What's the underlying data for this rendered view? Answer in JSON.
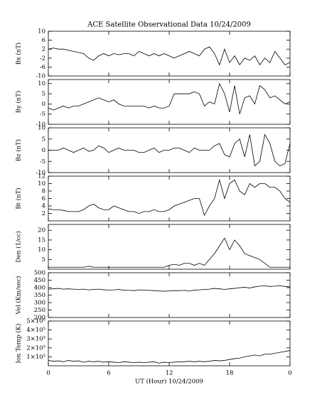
{
  "chart_data": [
    {
      "type": "line",
      "title": "ACE Satellite Observational Data   10/24/2009",
      "ylabel": "Bx (nT)",
      "color": "#000000",
      "x": [
        0,
        0.5,
        1,
        1.5,
        2,
        2.5,
        3,
        3.5,
        4,
        4.5,
        5,
        5.5,
        6,
        6.5,
        7,
        7.5,
        8,
        8.5,
        9,
        9.5,
        10,
        10.5,
        11,
        11.5,
        12,
        12.5,
        13,
        13.5,
        14,
        14.5,
        15,
        15.5,
        16,
        16.5,
        17,
        17.5,
        18,
        18.5,
        19,
        19.5,
        20,
        20.5,
        21,
        21.5,
        22,
        22.5,
        23,
        23.5,
        24
      ],
      "values": [
        2,
        2.5,
        2,
        2,
        1.5,
        1,
        0.5,
        0,
        -2,
        -3,
        -1,
        0,
        -1,
        0,
        -0.5,
        0,
        0,
        -1,
        1,
        0,
        -1,
        0,
        -1,
        0,
        -1,
        -2,
        -1,
        0,
        1,
        0,
        -1,
        2,
        3,
        0,
        -5,
        2,
        -4,
        -1,
        -5,
        -2,
        -3,
        -1,
        -5,
        -2,
        -4,
        1,
        -2,
        -5,
        -4
      ],
      "xlim": [
        0,
        24
      ],
      "ylim": [
        -10,
        10
      ],
      "yticks": [
        -10,
        -6,
        -2,
        2,
        6,
        10
      ]
    },
    {
      "type": "line",
      "ylabel": "By (nT)",
      "color": "#000000",
      "x": [
        0,
        0.5,
        1,
        1.5,
        2,
        2.5,
        3,
        3.5,
        4,
        4.5,
        5,
        5.5,
        6,
        6.5,
        7,
        7.5,
        8,
        8.5,
        9,
        9.5,
        10,
        10.5,
        11,
        11.5,
        12,
        12.5,
        13,
        13.5,
        14,
        14.5,
        15,
        15.5,
        16,
        16.5,
        17,
        17.5,
        18,
        18.5,
        19,
        19.5,
        20,
        20.5,
        21,
        21.5,
        22,
        22.5,
        23,
        23.5,
        24
      ],
      "values": [
        -2,
        -3,
        -2,
        -1,
        -2,
        -1,
        -1,
        0,
        1,
        2,
        3,
        2,
        1,
        2,
        0,
        -1,
        -1,
        -1,
        -1,
        -1,
        -2,
        -1,
        -2,
        -2,
        -1,
        5,
        5,
        5,
        5,
        6,
        5,
        -1,
        1,
        0,
        10,
        5,
        -4,
        9,
        -5,
        3,
        4,
        0,
        9,
        7,
        3,
        4,
        2,
        0,
        1
      ],
      "xlim": [
        0,
        24
      ],
      "ylim": [
        -10,
        12
      ],
      "yticks": [
        -10,
        -5,
        0,
        5,
        10
      ]
    },
    {
      "type": "line",
      "ylabel": "Bz (nT)",
      "color": "#000000",
      "x": [
        0,
        0.5,
        1,
        1.5,
        2,
        2.5,
        3,
        3.5,
        4,
        4.5,
        5,
        5.5,
        6,
        6.5,
        7,
        7.5,
        8,
        8.5,
        9,
        9.5,
        10,
        10.5,
        11,
        11.5,
        12,
        12.5,
        13,
        13.5,
        14,
        14.5,
        15,
        15.5,
        16,
        16.5,
        17,
        17.5,
        18,
        18.5,
        19,
        19.5,
        20,
        20.5,
        21,
        21.5,
        22,
        22.5,
        23,
        23.5,
        24
      ],
      "values": [
        0,
        0,
        0,
        1,
        0,
        -1,
        0,
        1,
        -0.5,
        0,
        2,
        1,
        -1,
        0,
        1,
        0,
        0,
        0,
        -1,
        -1,
        0,
        1,
        -1,
        0,
        0,
        1,
        1,
        0,
        -1,
        1,
        0,
        0,
        0,
        2,
        3,
        -2,
        -3,
        3,
        5,
        -3,
        7,
        -7,
        -5,
        7,
        3,
        -5,
        -7,
        -6,
        3
      ],
      "xlim": [
        0,
        24
      ],
      "ylim": [
        -10,
        10
      ],
      "yticks": [
        -10,
        -5,
        0,
        5,
        10
      ]
    },
    {
      "type": "line",
      "ylabel": "Bt (nT)",
      "color": "#000000",
      "x": [
        0,
        0.5,
        1,
        1.5,
        2,
        2.5,
        3,
        3.5,
        4,
        4.5,
        5,
        5.5,
        6,
        6.5,
        7,
        7.5,
        8,
        8.5,
        9,
        9.5,
        10,
        10.5,
        11,
        11.5,
        12,
        12.5,
        13,
        13.5,
        14,
        14.5,
        15,
        15.5,
        16,
        16.5,
        17,
        17.5,
        18,
        18.5,
        19,
        19.5,
        20,
        20.5,
        21,
        21.5,
        22,
        22.5,
        23,
        23.5,
        24
      ],
      "values": [
        3.2,
        3,
        3,
        2.8,
        2.5,
        2.5,
        2.5,
        3,
        4,
        4.5,
        3.5,
        3,
        3,
        4,
        3.5,
        3,
        2.5,
        2.5,
        2,
        2.5,
        2.5,
        3,
        2.5,
        2.5,
        3,
        4,
        4.5,
        5,
        5.5,
        6,
        6,
        1.5,
        4,
        6,
        11,
        6,
        10,
        11,
        8,
        7,
        10,
        9,
        10,
        10,
        9,
        9,
        8,
        6,
        5
      ],
      "xlim": [
        0,
        24
      ],
      "ylim": [
        0,
        12
      ],
      "yticks": [
        2,
        4,
        6,
        8,
        10,
        12
      ]
    },
    {
      "type": "line",
      "ylabel": "Den (1/cc)",
      "color": "#000000",
      "x": [
        0,
        0.5,
        1,
        1.5,
        2,
        2.5,
        3,
        3.5,
        4,
        4.5,
        5,
        5.5,
        6,
        6.5,
        7,
        7.5,
        8,
        8.5,
        9,
        9.5,
        10,
        10.5,
        11,
        11.5,
        12,
        12.5,
        13,
        13.5,
        14,
        14.5,
        15,
        15.5,
        16,
        16.5,
        17,
        17.5,
        18,
        18.5,
        19,
        19.5,
        20,
        20.5,
        21,
        21.5,
        22,
        22.5,
        23,
        23.5,
        24
      ],
      "values": [
        1,
        1,
        1,
        1,
        1,
        1,
        1,
        1,
        1.5,
        1,
        1,
        1,
        1,
        1,
        1,
        1,
        1,
        1,
        1,
        1,
        1,
        1,
        1,
        1,
        2,
        2.5,
        2,
        3,
        3,
        2,
        3,
        2,
        5,
        8,
        12,
        16,
        10,
        15,
        12,
        8,
        7,
        6,
        5,
        3,
        1,
        1,
        1,
        1,
        1
      ],
      "xlim": [
        0,
        24
      ],
      "ylim": [
        0,
        23
      ],
      "yticks": [
        5,
        10,
        15,
        20
      ]
    },
    {
      "type": "line",
      "ylabel": "Vel (Km/sec)",
      "color": "#000000",
      "x": [
        0,
        0.5,
        1,
        1.5,
        2,
        2.5,
        3,
        3.5,
        4,
        4.5,
        5,
        5.5,
        6,
        6.5,
        7,
        7.5,
        8,
        8.5,
        9,
        9.5,
        10,
        10.5,
        11,
        11.5,
        12,
        12.5,
        13,
        13.5,
        14,
        14.5,
        15,
        15.5,
        16,
        16.5,
        17,
        17.5,
        18,
        18.5,
        19,
        19.5,
        20,
        20.5,
        21,
        21.5,
        22,
        22.5,
        23,
        23.5,
        24
      ],
      "values": [
        390,
        392,
        395,
        390,
        392,
        390,
        388,
        390,
        385,
        388,
        390,
        386,
        384,
        385,
        388,
        383,
        382,
        380,
        385,
        384,
        382,
        380,
        378,
        376,
        378,
        380,
        380,
        382,
        378,
        383,
        385,
        388,
        390,
        395,
        392,
        388,
        392,
        395,
        400,
        402,
        398,
        405,
        410,
        412,
        408,
        410,
        412,
        408,
        405
      ],
      "xlim": [
        0,
        24
      ],
      "ylim": [
        200,
        500
      ],
      "yticks": [
        200,
        250,
        300,
        350,
        400,
        450,
        500
      ]
    },
    {
      "type": "line",
      "ylabel": "Ion Temp (K)",
      "xlabel": "UT (Hour)  10/24/2009",
      "color": "#000000",
      "x": [
        0,
        0.5,
        1,
        1.5,
        2,
        2.5,
        3,
        3.5,
        4,
        4.5,
        5,
        5.5,
        6,
        6.5,
        7,
        7.5,
        8,
        8.5,
        9,
        9.5,
        10,
        10.5,
        11,
        11.5,
        12,
        12.5,
        13,
        13.5,
        14,
        14.5,
        15,
        15.5,
        16,
        16.5,
        17,
        17.5,
        18,
        18.5,
        19,
        19.5,
        20,
        20.5,
        21,
        21.5,
        22,
        22.5,
        23,
        23.5,
        24
      ],
      "values": [
        60000,
        50000,
        55000,
        45000,
        60000,
        50000,
        55000,
        40000,
        50000,
        45000,
        50000,
        40000,
        45000,
        40000,
        35000,
        45000,
        40000,
        35000,
        40000,
        35000,
        40000,
        45000,
        30000,
        40000,
        35000,
        40000,
        45000,
        45000,
        50000,
        45000,
        50000,
        45000,
        50000,
        60000,
        55000,
        60000,
        70000,
        80000,
        85000,
        100000,
        110000,
        120000,
        110000,
        130000,
        130000,
        140000,
        150000,
        160000,
        170000
      ],
      "xlim": [
        0,
        24
      ],
      "xticks": [
        0,
        6,
        12,
        18,
        {
          "value": 24,
          "label": "0"
        }
      ],
      "ylim": [
        0,
        500000
      ],
      "yticks": [
        {
          "value": 100000,
          "label": "1×10⁵"
        },
        {
          "value": 200000,
          "label": "2×10⁵"
        },
        {
          "value": 300000,
          "label": "3×10⁵"
        },
        {
          "value": 400000,
          "label": "4×10⁵"
        },
        {
          "value": 500000,
          "label": "5×10⁵"
        }
      ]
    }
  ]
}
